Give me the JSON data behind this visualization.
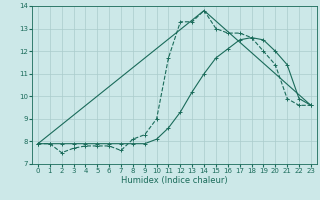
{
  "title": "",
  "xlabel": "Humidex (Indice chaleur)",
  "xlim": [
    -0.5,
    23.5
  ],
  "ylim": [
    7,
    14
  ],
  "yticks": [
    7,
    8,
    9,
    10,
    11,
    12,
    13,
    14
  ],
  "xticks": [
    0,
    1,
    2,
    3,
    4,
    5,
    6,
    7,
    8,
    9,
    10,
    11,
    12,
    13,
    14,
    15,
    16,
    17,
    18,
    19,
    20,
    21,
    22,
    23
  ],
  "bg_color": "#cce8e8",
  "grid_color": "#aacccc",
  "line_color": "#1a6b5a",
  "line1_x": [
    0,
    1,
    2,
    3,
    4,
    5,
    6,
    7,
    8,
    9,
    10,
    11,
    12,
    13,
    14,
    15,
    16,
    17,
    18,
    19,
    20,
    21,
    22,
    23
  ],
  "line1_y": [
    7.9,
    7.9,
    7.5,
    7.7,
    7.8,
    7.8,
    7.8,
    7.6,
    8.1,
    8.3,
    9.0,
    11.7,
    13.3,
    13.3,
    13.8,
    13.0,
    12.8,
    12.8,
    12.6,
    12.0,
    11.4,
    9.9,
    9.6,
    9.6
  ],
  "line2_x": [
    0,
    1,
    2,
    3,
    4,
    5,
    6,
    7,
    8,
    9,
    10,
    11,
    12,
    13,
    14,
    15,
    16,
    17,
    18,
    19,
    20,
    21,
    22,
    23
  ],
  "line2_y": [
    7.9,
    7.9,
    7.9,
    7.9,
    7.9,
    7.9,
    7.9,
    7.9,
    7.9,
    7.9,
    8.1,
    8.6,
    9.3,
    10.2,
    11.0,
    11.7,
    12.1,
    12.5,
    12.6,
    12.5,
    12.0,
    11.4,
    9.9,
    9.6
  ],
  "line3_x": [
    0,
    14,
    23
  ],
  "line3_y": [
    7.9,
    13.8,
    9.6
  ]
}
